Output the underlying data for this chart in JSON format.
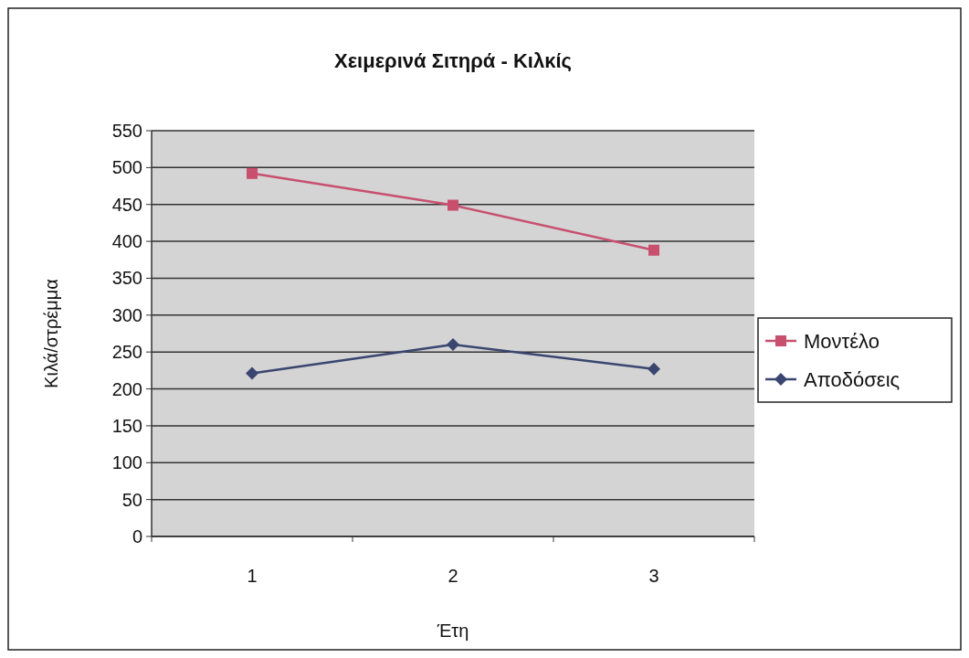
{
  "chart_data": {
    "type": "line",
    "title": "Χειμερινά Σιτηρά - Κιλκίς",
    "xlabel": "Έτη",
    "ylabel": "Κιλά/στρέμμα",
    "categories": [
      "1",
      "2",
      "3"
    ],
    "series": [
      {
        "name": "Μοντέλο",
        "color": "#c8506e",
        "values": [
          492,
          449,
          388
        ],
        "marker": "square"
      },
      {
        "name": "Αποδόσεις",
        "color": "#3a4670",
        "values": [
          221,
          260,
          227
        ],
        "marker": "diamond"
      }
    ],
    "ylim": [
      0,
      550
    ],
    "yticks": [
      0,
      50,
      100,
      150,
      200,
      250,
      300,
      350,
      400,
      450,
      500,
      550
    ],
    "grid": "y",
    "legend": "right"
  }
}
